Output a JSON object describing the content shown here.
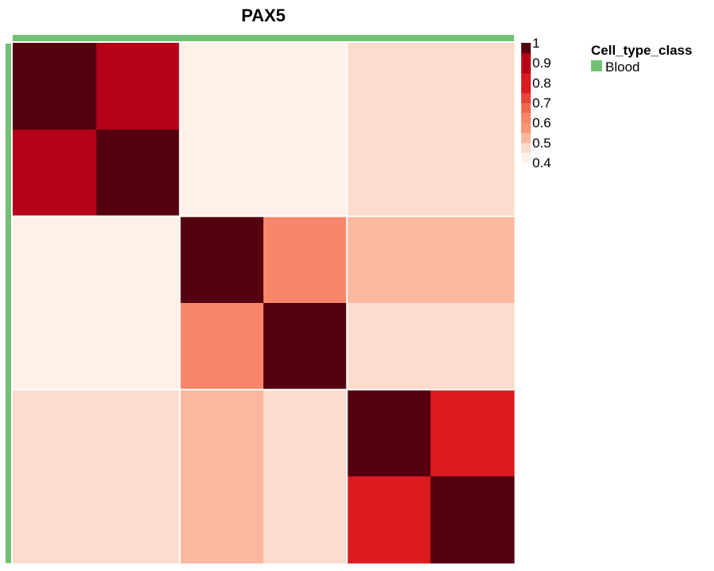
{
  "chart_data": {
    "type": "heatmap",
    "title": "PAX5",
    "rows": 6,
    "cols": 6,
    "matrix": [
      [
        1.0,
        0.9,
        0.4,
        0.4,
        0.48,
        0.48
      ],
      [
        0.9,
        1.0,
        0.4,
        0.4,
        0.48,
        0.48
      ],
      [
        0.4,
        0.4,
        1.0,
        0.62,
        0.54,
        0.54
      ],
      [
        0.4,
        0.4,
        0.62,
        1.0,
        0.48,
        0.48
      ],
      [
        0.48,
        0.48,
        0.54,
        0.48,
        1.0,
        0.8
      ],
      [
        0.48,
        0.48,
        0.54,
        0.48,
        0.8,
        1.0
      ]
    ],
    "color_scale": {
      "ticks": [
        "1",
        "0.9",
        "0.8",
        "0.7",
        "0.6",
        "0.5",
        "0.4"
      ],
      "steps": [
        {
          "min": 0.4,
          "max": 0.45,
          "color": "#fff0ea"
        },
        {
          "min": 0.45,
          "max": 0.5,
          "color": "#fcdccd"
        },
        {
          "min": 0.5,
          "max": 0.55,
          "color": "#fbb89e"
        },
        {
          "min": 0.55,
          "max": 0.6,
          "color": "#fa9576"
        },
        {
          "min": 0.6,
          "max": 0.65,
          "color": "#f9866a"
        },
        {
          "min": 0.65,
          "max": 0.7,
          "color": "#f26a4e"
        },
        {
          "min": 0.7,
          "max": 0.75,
          "color": "#e9443a"
        },
        {
          "min": 0.75,
          "max": 0.85,
          "color": "#db1b1f"
        },
        {
          "min": 0.85,
          "max": 0.95,
          "color": "#b50119"
        },
        {
          "min": 0.95,
          "max": 1.01,
          "color": "#54000f"
        }
      ]
    },
    "annotation": {
      "title": "Cell_type_class",
      "entries": [
        {
          "label": "Blood",
          "color": "#72c074"
        }
      ]
    }
  }
}
